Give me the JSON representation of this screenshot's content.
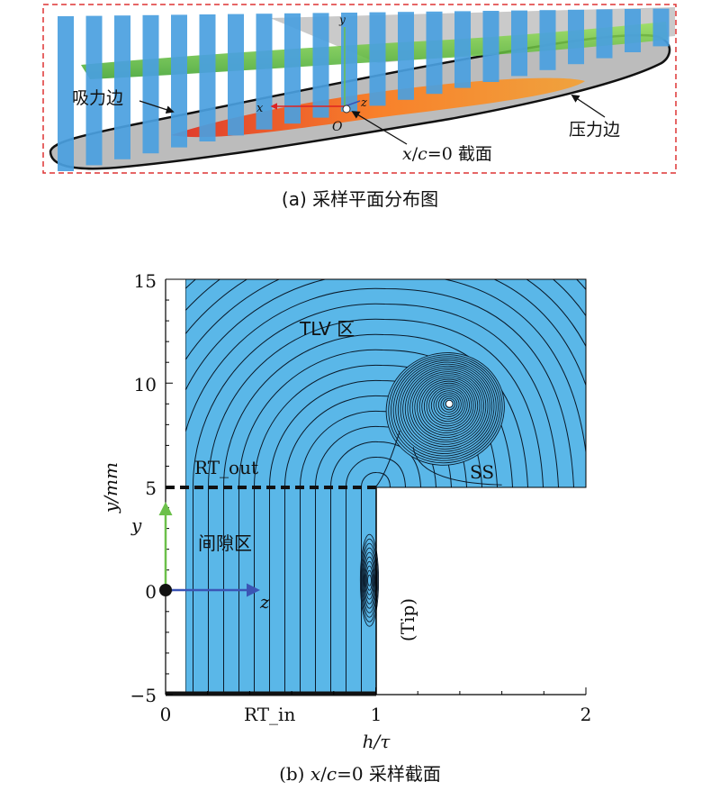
{
  "panel_a": {
    "caption": "(a) 采样平面分布图",
    "suction_side_label": "吸力边",
    "pressure_side_label": "压力边",
    "section_label": "x/c=0 截面",
    "origin_label": "O",
    "axis_x": "x",
    "axis_y": "y",
    "axis_z": "z",
    "plane_count": 22
  },
  "panel_b": {
    "caption": "(b) x/c=0 采样截面",
    "xlabel": "h/τ",
    "ylabel": "y/mm",
    "x_ticks": [
      "0",
      "1",
      "2"
    ],
    "y_ticks": [
      "15",
      "10",
      "5",
      "0",
      "−5"
    ],
    "xlim": [
      0,
      2
    ],
    "ylim": [
      -5,
      15
    ],
    "regions": {
      "tlv": "TLV 区",
      "gap": "间隙区",
      "ss": "SS",
      "tip": "(Tip)",
      "rt_out": "RT_out",
      "rt_in": "RT_in"
    },
    "axis_y_arrow": "y",
    "axis_z_arrow": "z",
    "rt_out_y": 5,
    "tip_x": 1,
    "vortex_center": [
      1.35,
      9
    ],
    "colors": {
      "fluid": "#5ab7e8",
      "y_arrow": "#6cc04a",
      "z_arrow": "#3b55b5"
    }
  }
}
